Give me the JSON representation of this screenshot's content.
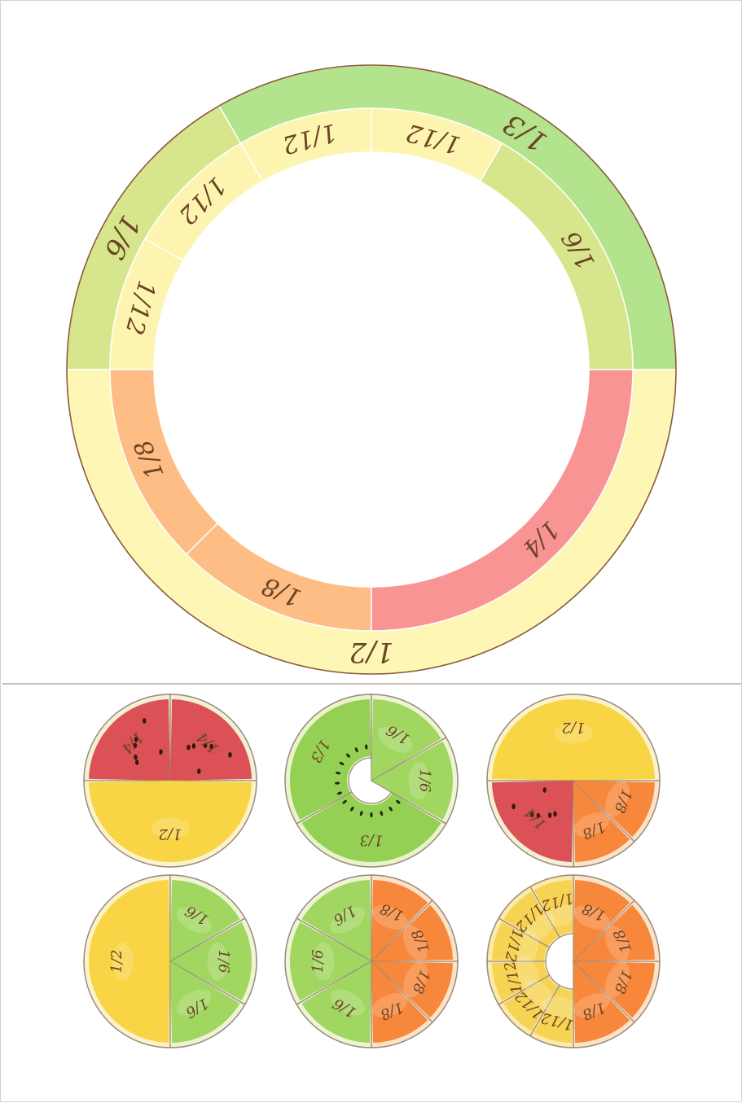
{
  "colors": {
    "outline": "#8a5a3a",
    "divider": "#b8a59a",
    "label": "#6b4423",
    "green_third": "#b3e38c",
    "green_sixth": "#d7e68d",
    "pale_yellow": "#fdf4b0",
    "yellow_half": "#fdf6b4",
    "orange_eighth": "#fdbd84",
    "pink_quarter": "#f99494",
    "watermelon": "#d9434b",
    "watermelon_rind": "#7fbf5a",
    "lemon": "#f8d13a",
    "kiwi": "#8ccc4a",
    "lime": "#9ad257",
    "orange": "#f6802f",
    "pineapple": "#f6d04d"
  },
  "ring": {
    "outer_segments": [
      {
        "label": "1/3",
        "fruit": "green_third"
      },
      {
        "label": "1/6",
        "fruit": "green_sixth"
      },
      {
        "label": "1/2",
        "fruit": "yellow_half"
      }
    ],
    "middle_segments": [
      {
        "label": "1/6",
        "fruit": "green_sixth"
      },
      {
        "label": "1/12",
        "fruit": "pale_yellow"
      },
      {
        "label": "1/12",
        "fruit": "pale_yellow"
      },
      {
        "label": "1/12",
        "fruit": "pale_yellow"
      },
      {
        "label": "1/12",
        "fruit": "pale_yellow"
      },
      {
        "label": "1/8",
        "fruit": "orange_eighth"
      },
      {
        "label": "1/8",
        "fruit": "orange_eighth"
      },
      {
        "label": "1/4",
        "fruit": "pink_quarter"
      }
    ]
  },
  "fruit_pieces": [
    {
      "name": "watermelon-lemon",
      "labels": [
        "1/4",
        "1/4",
        "1/2"
      ]
    },
    {
      "name": "kiwi-lime",
      "labels": [
        "1/3",
        "1/6",
        "1/6",
        "1/3"
      ]
    },
    {
      "name": "lemon-watermelon-orange",
      "labels": [
        "1/2",
        "1/4",
        "1/8",
        "1/8"
      ]
    },
    {
      "name": "lemon-lime",
      "labels": [
        "1/2",
        "1/6",
        "1/6",
        "1/6"
      ]
    },
    {
      "name": "lime-orange",
      "labels": [
        "1/6",
        "1/6",
        "1/6",
        "1/8",
        "1/8",
        "1/8",
        "1/8"
      ]
    },
    {
      "name": "pineapple-orange",
      "labels": [
        "1/12",
        "1/12",
        "1/12",
        "1/12",
        "1/12",
        "1/12",
        "1/8",
        "1/8",
        "1/8",
        "1/8"
      ]
    }
  ]
}
